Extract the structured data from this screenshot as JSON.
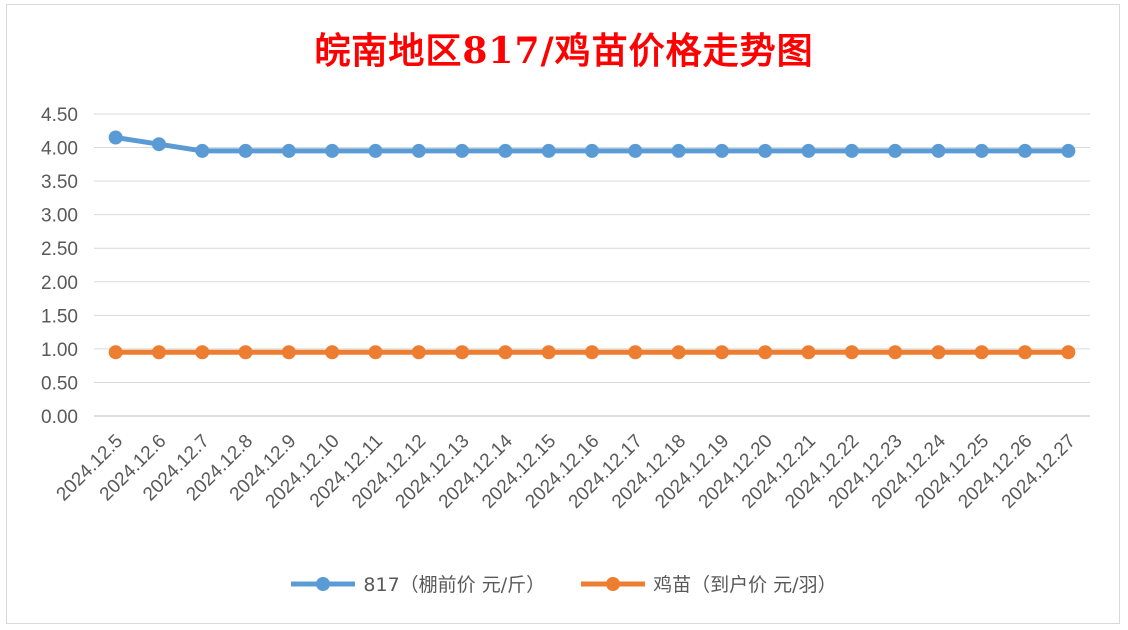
{
  "chart_data": {
    "type": "line",
    "title": "皖南地区817/鸡苗价格走势图",
    "categories": [
      "2024.12.5",
      "2024.12.6",
      "2024.12.7",
      "2024.12.8",
      "2024.12.9",
      "2024.12.10",
      "2024.12.11",
      "2024.12.12",
      "2024.12.13",
      "2024.12.14",
      "2024.12.15",
      "2024.12.16",
      "2024.12.17",
      "2024.12.18",
      "2024.12.19",
      "2024.12.20",
      "2024.12.21",
      "2024.12.22",
      "2024.12.23",
      "2024.12.24",
      "2024.12.25",
      "2024.12.26",
      "2024.12.27"
    ],
    "series": [
      {
        "name": "817（棚前价 元/斤）",
        "color": "#5b9bd5",
        "values": [
          4.15,
          4.05,
          3.95,
          3.95,
          3.95,
          3.95,
          3.95,
          3.95,
          3.95,
          3.95,
          3.95,
          3.95,
          3.95,
          3.95,
          3.95,
          3.95,
          3.95,
          3.95,
          3.95,
          3.95,
          3.95,
          3.95,
          3.95
        ]
      },
      {
        "name": "鸡苗（到户价 元/羽）",
        "color": "#ed7d31",
        "values": [
          0.95,
          0.95,
          0.95,
          0.95,
          0.95,
          0.95,
          0.95,
          0.95,
          0.95,
          0.95,
          0.95,
          0.95,
          0.95,
          0.95,
          0.95,
          0.95,
          0.95,
          0.95,
          0.95,
          0.95,
          0.95,
          0.95,
          0.95
        ]
      }
    ],
    "ylim": [
      0,
      4.5
    ],
    "yticks": [
      "0.00",
      "0.50",
      "1.00",
      "1.50",
      "2.00",
      "2.50",
      "3.00",
      "3.50",
      "4.00",
      "4.50"
    ],
    "xlabel": "",
    "ylabel": "",
    "grid": true,
    "legend": "bottom"
  }
}
